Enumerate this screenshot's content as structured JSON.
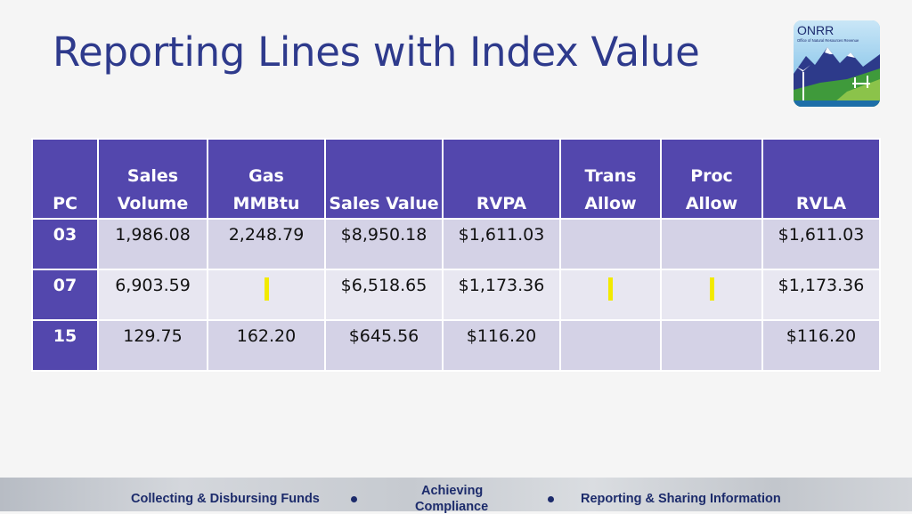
{
  "slide": {
    "title": "Reporting Lines with Index Value"
  },
  "logo": {
    "name": "ONRR",
    "subtitle": "Office of Natural Resources Revenue"
  },
  "table": {
    "headers": [
      "PC",
      "Sales Volume",
      "Gas MMBtu",
      "Sales Value",
      "RVPA",
      "Trans Allow",
      "Proc Allow",
      "RVLA"
    ],
    "rows": [
      {
        "pc": "03",
        "sales_volume": "1,986.08",
        "gas_mmbtu": "2,248.79",
        "sales_value": "$8,950.18",
        "rvpa": "$1,611.03",
        "trans_allow": "",
        "proc_allow": "",
        "rvla": "$1,611.03"
      },
      {
        "pc": "07",
        "sales_volume": "6,903.59",
        "gas_mmbtu": "",
        "sales_value": "$6,518.65",
        "rvpa": "$1,173.36",
        "trans_allow": "",
        "proc_allow": "",
        "rvla": "$1,173.36"
      },
      {
        "pc": "15",
        "sales_volume": "129.75",
        "gas_mmbtu": "162.20",
        "sales_value": "$645.56",
        "rvpa": "$116.20",
        "trans_allow": "",
        "proc_allow": "",
        "rvla": "$116.20"
      }
    ],
    "colors": {
      "header_bg": "#5347ad",
      "row_light": "#e8e7f1",
      "row_dark": "#d4d2e6",
      "marker": "#f2ea00"
    }
  },
  "footer": {
    "left": "Collecting & Disbursing Funds",
    "middle_line1": "Achieving",
    "middle_line2": "Compliance",
    "right": "Reporting & Sharing Information"
  }
}
